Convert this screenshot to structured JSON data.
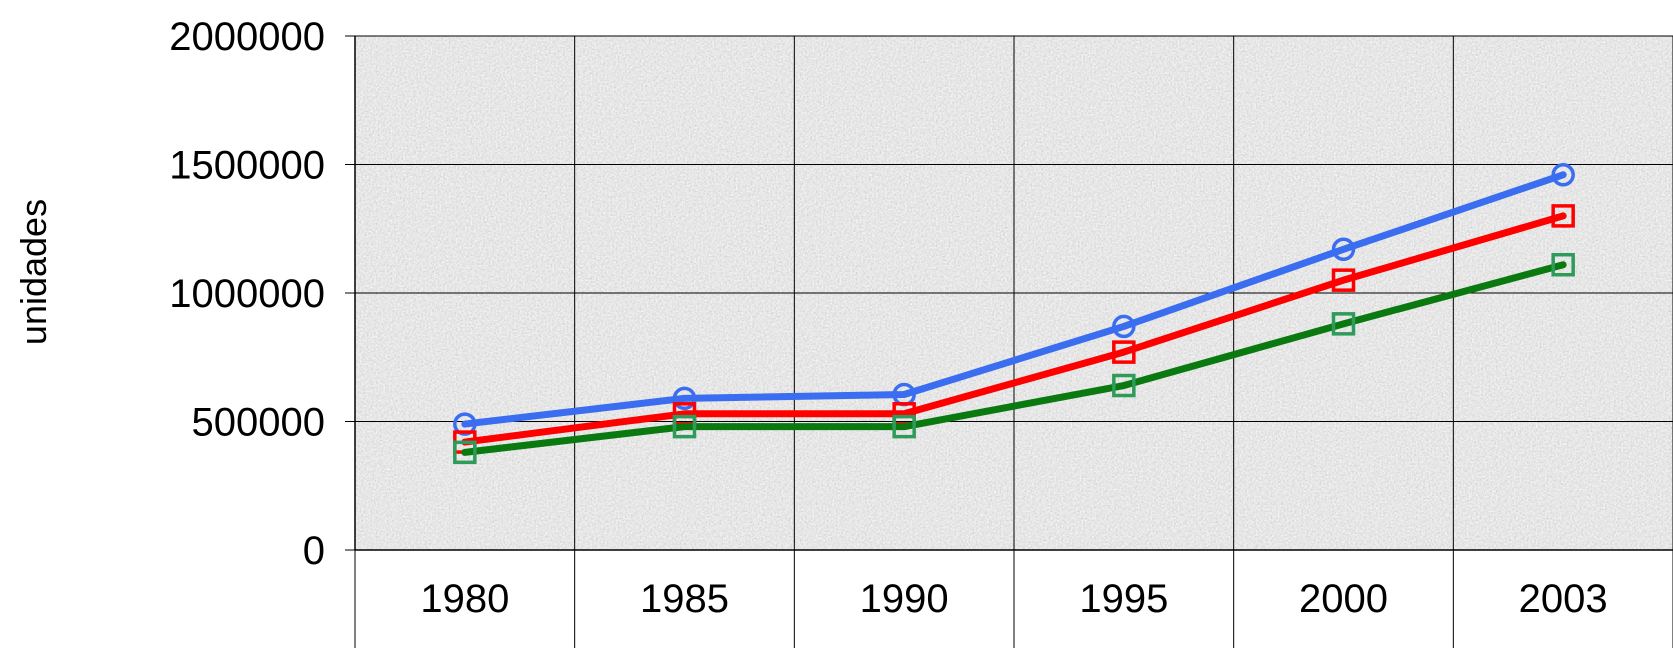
{
  "chart_data": {
    "type": "line",
    "title": "",
    "xlabel": "",
    "ylabel": "unidades",
    "categories": [
      "1980",
      "1985",
      "1990",
      "1995",
      "2000",
      "2003"
    ],
    "ylim": [
      0,
      2000000
    ],
    "yticks": [
      "0",
      "500000",
      "1000000",
      "1500000",
      "2000000"
    ],
    "grid": true,
    "legend": "none",
    "series": [
      {
        "color": "#3a6df0",
        "marker": "circle",
        "values": [
          490000,
          590000,
          605000,
          870000,
          1170000,
          1460000
        ]
      },
      {
        "color": "#ff0000",
        "marker": "square",
        "values": [
          420000,
          530000,
          530000,
          770000,
          1050000,
          1300000
        ]
      },
      {
        "color": "#0a7a10",
        "marker_color": "#2e9b5a",
        "marker": "square",
        "values": [
          380000,
          480000,
          480000,
          640000,
          880000,
          1110000
        ]
      }
    ]
  }
}
